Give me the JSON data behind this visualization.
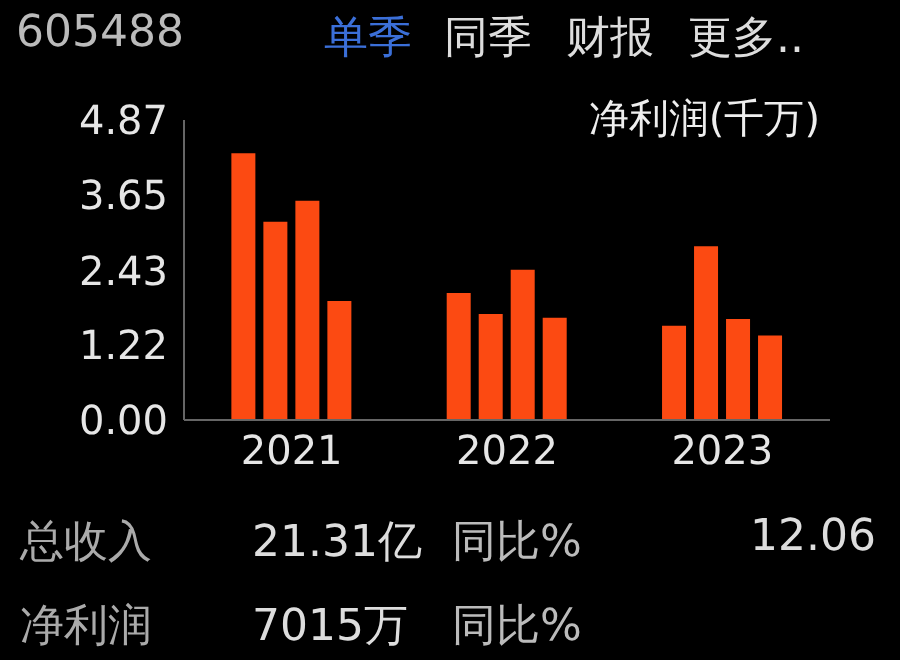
{
  "chart_data": {
    "type": "bar",
    "title": "605488",
    "ylabel": "净利润(千万)",
    "categories": [
      "2021",
      "2022",
      "2023"
    ],
    "series": [
      {
        "color": "#fc4a12",
        "values": [
          4.33,
          2.06,
          1.53
        ]
      },
      {
        "color": "#fc4a12",
        "values": [
          3.22,
          1.72,
          2.82
        ]
      },
      {
        "color": "#fc4a12",
        "values": [
          3.56,
          2.44,
          1.64
        ]
      },
      {
        "color": "#fc4a12",
        "values": [
          1.93,
          1.66,
          1.37
        ]
      }
    ],
    "ylim": [
      0,
      4.87
    ],
    "yticks": [
      {
        "value": 0,
        "label": "0.00"
      },
      1.22,
      2.43,
      3.65,
      4.87
    ],
    "grid": false,
    "legend": false,
    "annotations": [
      "单季",
      "同季",
      "财报",
      "更多..",
      "总收入",
      "21.31亿",
      "同比%",
      "12.06",
      "净利润",
      "7015万",
      "同比%"
    ]
  }
}
